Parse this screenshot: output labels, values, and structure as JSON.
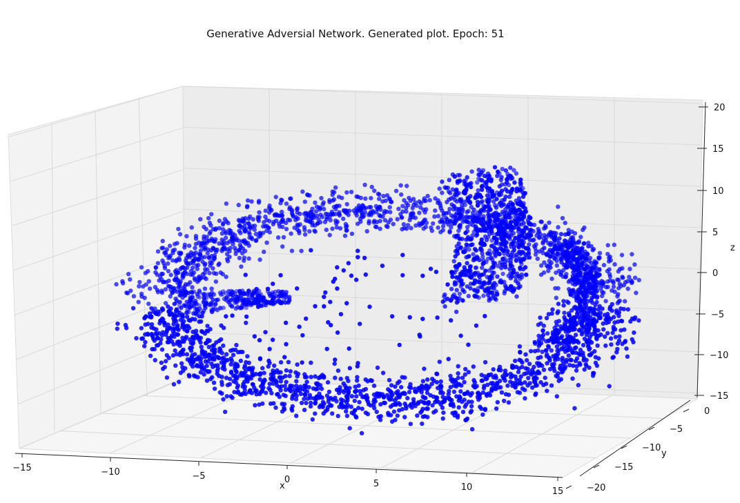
{
  "chart_data": {
    "type": "scatter",
    "projection": "3d",
    "title": "Generative Adversial Network. Generated plot. Epoch: 51",
    "xlabel": "x",
    "ylabel": "y",
    "zlabel": "z",
    "xlim": [
      -15,
      15
    ],
    "ylim": [
      -20,
      0
    ],
    "zlim": [
      -15,
      20
    ],
    "x_ticks": [
      "−15",
      "−10",
      "−5",
      "0",
      "5",
      "10",
      "15"
    ],
    "y_ticks": [
      "0",
      "−5",
      "−10",
      "−15",
      "−20"
    ],
    "z_ticks": [
      "20",
      "15",
      "10",
      "5",
      "0",
      "−5",
      "−10",
      "−15"
    ],
    "grid": true,
    "point_color": "#0000ff",
    "point_count": 6000,
    "shape_description": "ring / Swiss-roll-like band of generated samples with a raised flap near x≈5, plus sparse points in the interior"
  }
}
